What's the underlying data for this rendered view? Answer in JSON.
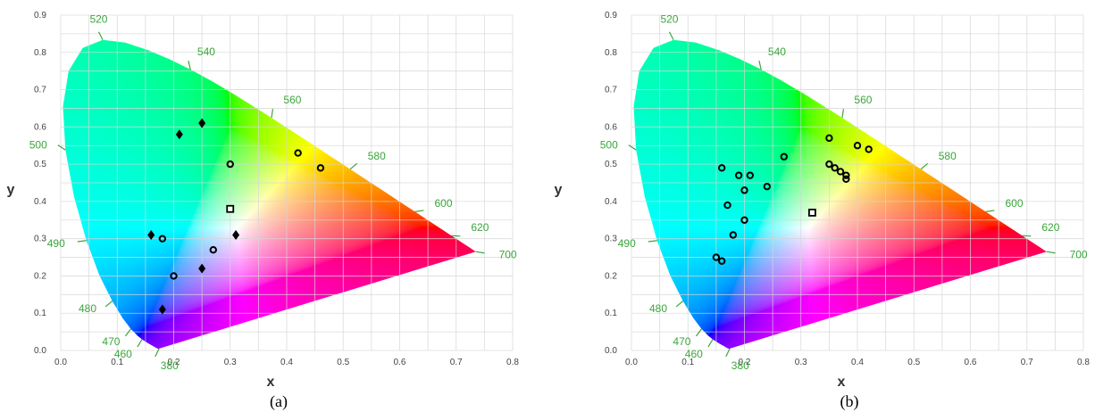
{
  "colors": {
    "wavelength_label": "#3aa63a",
    "tick_label": "#444444",
    "grid": "#d6d6d6",
    "marker": "#000000"
  },
  "chart_data": [
    {
      "type": "scatter",
      "caption": "(a)",
      "xlabel": "x",
      "ylabel": "y",
      "xlim": [
        0,
        0.8
      ],
      "ylim": [
        0,
        0.9
      ],
      "x_ticks": [
        "0.0",
        "0.1",
        "0.2",
        "0.3",
        "0.4",
        "0.5",
        "0.6",
        "0.7",
        "0.8"
      ],
      "y_ticks": [
        "0.0",
        "0.1",
        "0.2",
        "0.3",
        "0.4",
        "0.5",
        "0.6",
        "0.7",
        "0.8",
        "0.9"
      ],
      "grid": true,
      "background": "CIE 1931 chromaticity diagram",
      "wavelength_labels": [
        {
          "text": "380",
          "nm": 380
        },
        {
          "text": "460",
          "nm": 460
        },
        {
          "text": "470",
          "nm": 470
        },
        {
          "text": "480",
          "nm": 480
        },
        {
          "text": "490",
          "nm": 490
        },
        {
          "text": "500",
          "nm": 500
        },
        {
          "text": "520",
          "nm": 520
        },
        {
          "text": "540",
          "nm": 540
        },
        {
          "text": "560",
          "nm": 560
        },
        {
          "text": "580",
          "nm": 580
        },
        {
          "text": "600",
          "nm": 600
        },
        {
          "text": "620",
          "nm": 620
        },
        {
          "text": "700",
          "nm": 700
        }
      ],
      "series": [
        {
          "marker": "diamond",
          "points": [
            [
              0.21,
              0.58
            ],
            [
              0.25,
              0.61
            ],
            [
              0.16,
              0.31
            ],
            [
              0.31,
              0.31
            ],
            [
              0.25,
              0.22
            ],
            [
              0.18,
              0.11
            ]
          ]
        },
        {
          "marker": "circle",
          "points": [
            [
              0.3,
              0.5
            ],
            [
              0.42,
              0.53
            ],
            [
              0.46,
              0.49
            ],
            [
              0.18,
              0.3
            ],
            [
              0.27,
              0.27
            ],
            [
              0.2,
              0.2
            ]
          ]
        },
        {
          "marker": "square",
          "points": [
            [
              0.3,
              0.38
            ]
          ]
        }
      ]
    },
    {
      "type": "scatter",
      "caption": "(b)",
      "xlabel": "x",
      "ylabel": "y",
      "xlim": [
        0,
        0.8
      ],
      "ylim": [
        0,
        0.9
      ],
      "x_ticks": [
        "0.0",
        "0.1",
        "0.2",
        "0.3",
        "0.4",
        "0.5",
        "0.6",
        "0.7",
        "0.8"
      ],
      "y_ticks": [
        "0.0",
        "0.1",
        "0.2",
        "0.3",
        "0.4",
        "0.5",
        "0.6",
        "0.7",
        "0.8",
        "0.9"
      ],
      "grid": true,
      "background": "CIE 1931 chromaticity diagram",
      "wavelength_labels": [
        {
          "text": "380",
          "nm": 380
        },
        {
          "text": "460",
          "nm": 460
        },
        {
          "text": "470",
          "nm": 470
        },
        {
          "text": "480",
          "nm": 480
        },
        {
          "text": "490",
          "nm": 490
        },
        {
          "text": "500",
          "nm": 500
        },
        {
          "text": "520",
          "nm": 520
        },
        {
          "text": "540",
          "nm": 540
        },
        {
          "text": "560",
          "nm": 560
        },
        {
          "text": "580",
          "nm": 580
        },
        {
          "text": "600",
          "nm": 600
        },
        {
          "text": "620",
          "nm": 620
        },
        {
          "text": "700",
          "nm": 700
        }
      ],
      "series": [
        {
          "marker": "circle",
          "points": [
            [
              0.16,
              0.49
            ],
            [
              0.19,
              0.47
            ],
            [
              0.21,
              0.47
            ],
            [
              0.2,
              0.43
            ],
            [
              0.17,
              0.39
            ],
            [
              0.24,
              0.44
            ],
            [
              0.27,
              0.52
            ],
            [
              0.35,
              0.57
            ],
            [
              0.35,
              0.5
            ],
            [
              0.36,
              0.49
            ],
            [
              0.37,
              0.48
            ],
            [
              0.38,
              0.47
            ],
            [
              0.38,
              0.46
            ],
            [
              0.4,
              0.55
            ],
            [
              0.42,
              0.54
            ],
            [
              0.2,
              0.35
            ],
            [
              0.18,
              0.31
            ],
            [
              0.15,
              0.25
            ],
            [
              0.16,
              0.24
            ]
          ]
        },
        {
          "marker": "square",
          "points": [
            [
              0.32,
              0.37
            ]
          ]
        }
      ]
    }
  ]
}
